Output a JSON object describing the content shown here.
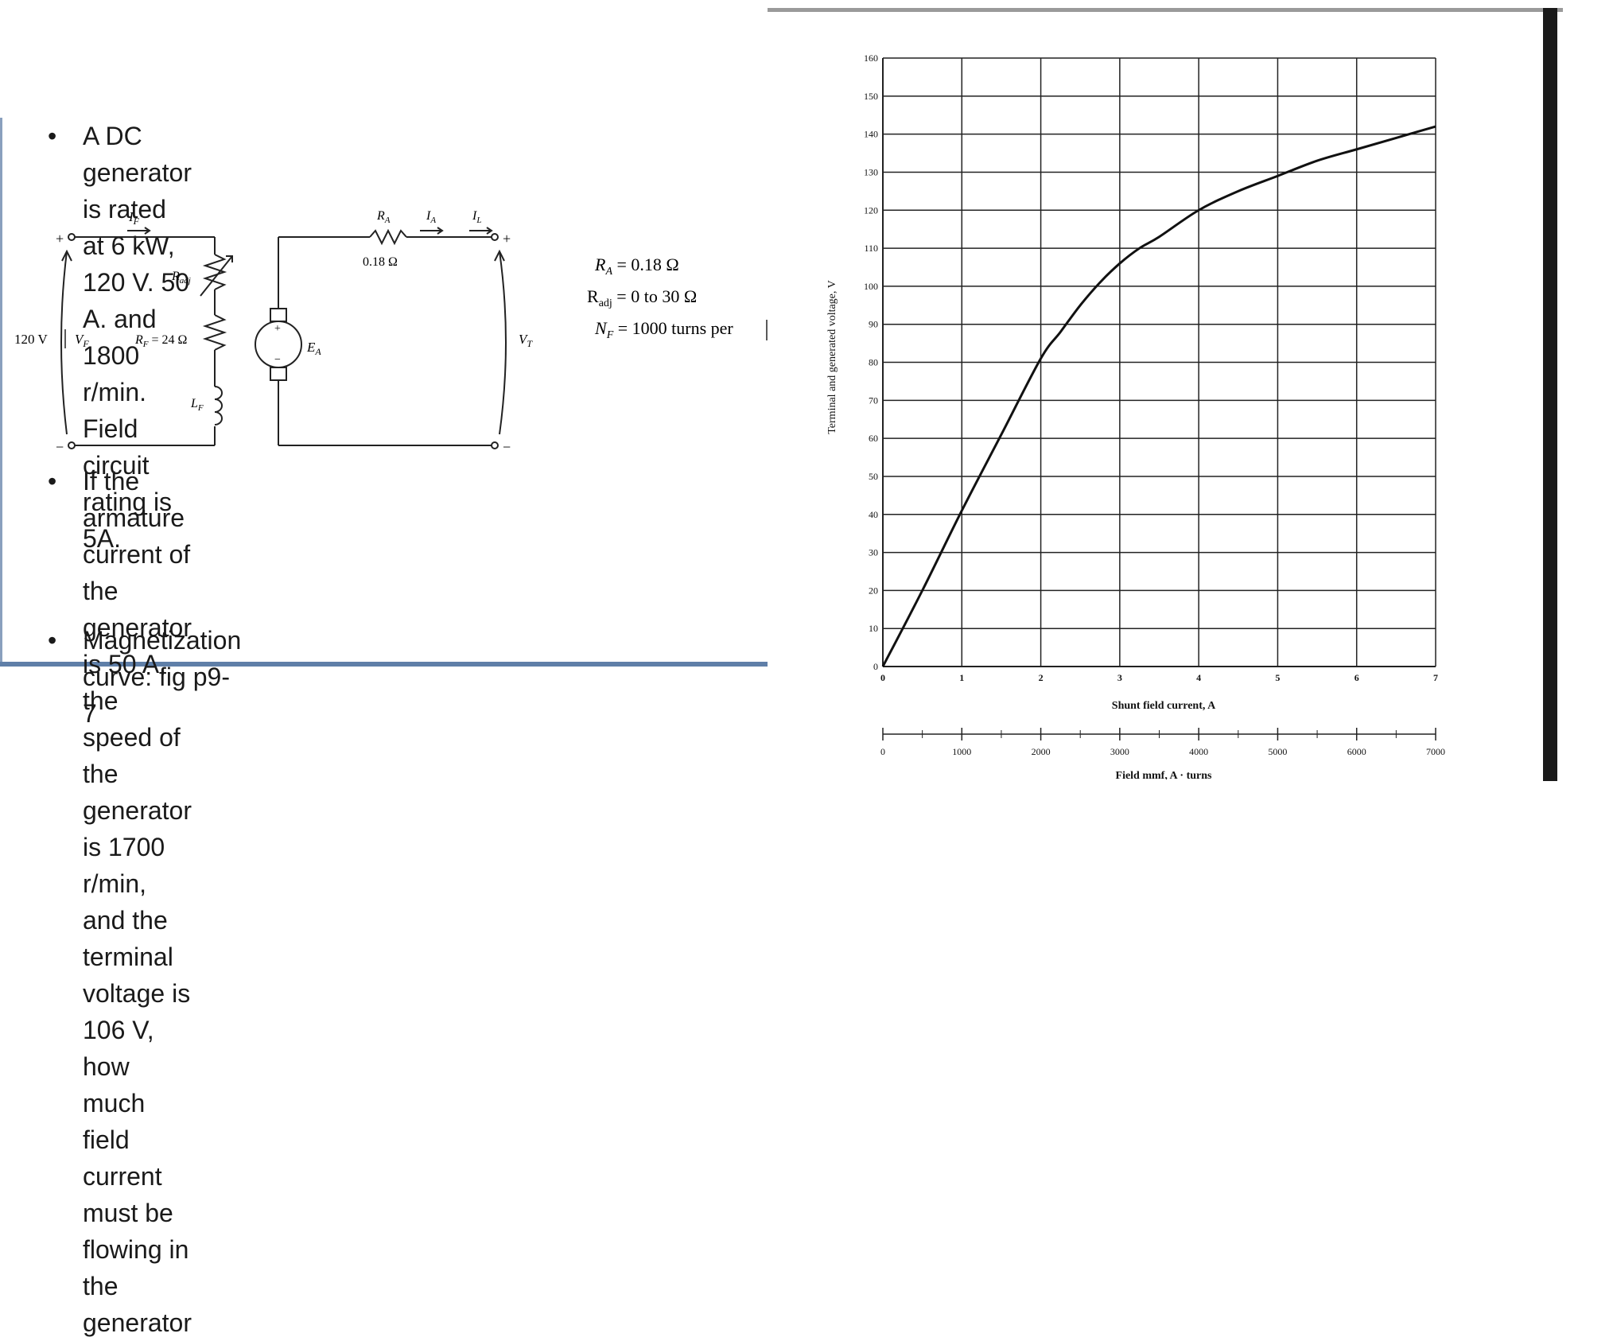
{
  "bullets": {
    "b1_lines": [
      "A DC generator is rated at 6 kW, 120 V. 50 A. and",
      "1800 r/min. Field circuit rating is 5A."
    ],
    "b2_lines": [
      "If the armature current of the generator is 50 A, the",
      "speed of the generator is 1700 r/min, and the",
      "terminal voltage is 106 V, how much field current",
      "must be flowing in the generator"
    ],
    "b3_line": "Magnetization curve: fig p9-7",
    "dot": "•"
  },
  "circuit": {
    "supply_voltage": "120 V",
    "vf": "V",
    "vf_sub": "F",
    "if_label": "I",
    "if_sub": "F",
    "radj_label": "R",
    "radj_sub": "adj",
    "rf_label": "R",
    "rf_sub": "F",
    "rf_value": " = 24 Ω",
    "lf_label": "L",
    "lf_sub": "F",
    "ra_label": "R",
    "ra_sub": "A",
    "ra_value": "0.18 Ω",
    "ia_label": "I",
    "ia_sub": "A",
    "il_label": "I",
    "il_sub": "L",
    "ea_label": "E",
    "ea_sub": "A",
    "vt_label": "V",
    "vt_sub": "T",
    "plus": "+",
    "minus": "−",
    "param_ra": "R",
    "param_ra_sub": "A",
    "param_ra_value": " = 0.18 Ω",
    "param_radj": "R",
    "param_radj_sub": "adj",
    "param_radj_value": " = 0 to 30 Ω",
    "param_nf": "N",
    "param_nf_sub": "F",
    "param_nf_value": " = 1000 turns per"
  },
  "chart_data": {
    "type": "line",
    "ylabel": "Terminal and generated voltage, V",
    "xlabel": "Shunt field current, A",
    "x2label": "Field mmf, A · turns",
    "xlim": [
      0,
      7
    ],
    "ylim": [
      0,
      160
    ],
    "x_ticks": [
      "0",
      "1",
      "2",
      "3",
      "4",
      "5",
      "6",
      "7"
    ],
    "y_ticks": [
      "0",
      "10",
      "20",
      "30",
      "40",
      "50",
      "60",
      "70",
      "80",
      "90",
      "100",
      "110",
      "120",
      "130",
      "140",
      "150",
      "160"
    ],
    "x2_ticks": [
      "0",
      "1000",
      "2000",
      "3000",
      "4000",
      "5000",
      "6000",
      "7000"
    ],
    "grid": true,
    "series": [
      {
        "x": [
          0,
          0.5,
          1.0,
          1.5,
          2.0,
          2.25,
          2.5,
          2.75,
          3.0,
          3.25,
          3.5,
          4.0,
          4.5,
          5.0,
          5.5,
          6.0,
          6.5,
          7.0
        ],
        "values": [
          0,
          20,
          41,
          61,
          81,
          88,
          95,
          101,
          106,
          110,
          113,
          120,
          125,
          129,
          133,
          136,
          139,
          142
        ]
      }
    ]
  }
}
